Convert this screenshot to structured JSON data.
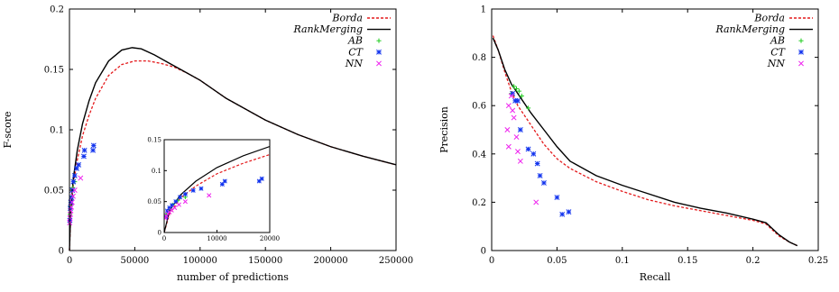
{
  "colors": {
    "borda": "#e41a1c",
    "rankmerging": "#000000",
    "ab": "#22cc22",
    "ct": "#1133ee",
    "nn": "#ee22ee"
  },
  "chart_data": [
    {
      "type": "line",
      "xlabel": "number of predictions",
      "ylabel": "F-score",
      "xlim": [
        0,
        250000
      ],
      "ylim": [
        0,
        0.2
      ],
      "xticks": [
        "0",
        "50000",
        "100000",
        "150000",
        "200000",
        "250000"
      ],
      "yticks": [
        "0",
        "0.05",
        "0.1",
        "0.15",
        "0.2"
      ],
      "grid": false,
      "legend": "top-right",
      "series": [
        {
          "name": "Borda",
          "style": "dashed",
          "points": [
            [
              0,
              0
            ],
            [
              1000,
              0.03
            ],
            [
              3000,
              0.055
            ],
            [
              6000,
              0.075
            ],
            [
              10000,
              0.095
            ],
            [
              15000,
              0.112
            ],
            [
              20000,
              0.126
            ],
            [
              30000,
              0.145
            ],
            [
              40000,
              0.154
            ],
            [
              50000,
              0.157
            ],
            [
              60000,
              0.157
            ],
            [
              70000,
              0.155
            ],
            [
              80000,
              0.152
            ],
            [
              90000,
              0.147
            ],
            [
              100000,
              0.141
            ],
            [
              120000,
              0.126
            ],
            [
              150000,
              0.108
            ],
            [
              175000,
              0.096
            ],
            [
              200000,
              0.086
            ],
            [
              225000,
              0.078
            ],
            [
              250000,
              0.071
            ]
          ]
        },
        {
          "name": "RankMerging",
          "style": "solid",
          "points": [
            [
              0,
              0
            ],
            [
              1000,
              0.035
            ],
            [
              3000,
              0.06
            ],
            [
              6000,
              0.083
            ],
            [
              10000,
              0.105
            ],
            [
              15000,
              0.124
            ],
            [
              20000,
              0.139
            ],
            [
              30000,
              0.157
            ],
            [
              40000,
              0.166
            ],
            [
              48000,
              0.168
            ],
            [
              55000,
              0.167
            ],
            [
              65000,
              0.162
            ],
            [
              75000,
              0.156
            ],
            [
              90000,
              0.147
            ],
            [
              100000,
              0.141
            ],
            [
              120000,
              0.126
            ],
            [
              150000,
              0.108
            ],
            [
              175000,
              0.096
            ],
            [
              200000,
              0.086
            ],
            [
              225000,
              0.078
            ],
            [
              250000,
              0.071
            ]
          ]
        },
        {
          "name": "AB",
          "style": "points",
          "points": [
            [
              400,
              0.03
            ],
            [
              900,
              0.037
            ],
            [
              1600,
              0.045
            ],
            [
              2600,
              0.052
            ],
            [
              4000,
              0.057
            ]
          ]
        },
        {
          "name": "CT",
          "style": "points",
          "points": [
            [
              300,
              0.025
            ],
            [
              600,
              0.035
            ],
            [
              1000,
              0.04
            ],
            [
              1500,
              0.044
            ],
            [
              2200,
              0.05
            ],
            [
              3000,
              0.057
            ],
            [
              4000,
              0.062
            ],
            [
              5500,
              0.068
            ],
            [
              7000,
              0.071
            ],
            [
              11000,
              0.078
            ],
            [
              11500,
              0.083
            ],
            [
              18000,
              0.083
            ],
            [
              18500,
              0.087
            ]
          ]
        },
        {
          "name": "NN",
          "style": "points",
          "points": [
            [
              200,
              0.023
            ],
            [
              400,
              0.027
            ],
            [
              700,
              0.03
            ],
            [
              1000,
              0.033
            ],
            [
              1400,
              0.036
            ],
            [
              2000,
              0.04
            ],
            [
              2800,
              0.045
            ],
            [
              4000,
              0.05
            ],
            [
              8500,
              0.06
            ]
          ]
        }
      ],
      "inset": {
        "xlim": [
          0,
          20000
        ],
        "ylim": [
          0,
          0.15
        ],
        "xticks": [
          "0",
          "10000",
          "20000"
        ],
        "yticks": [
          "0",
          "0.05",
          "0.1",
          "0.15"
        ]
      }
    },
    {
      "type": "line",
      "xlabel": "Recall",
      "ylabel": "Precision",
      "xlim": [
        0,
        0.25
      ],
      "ylim": [
        0,
        1
      ],
      "xticks": [
        "0",
        "0.05",
        "0.1",
        "0.15",
        "0.2",
        "0.25"
      ],
      "yticks": [
        "0",
        "0.2",
        "0.4",
        "0.6",
        "0.8",
        "1"
      ],
      "grid": false,
      "legend": "top-right",
      "series": [
        {
          "name": "Borda",
          "style": "dashed",
          "points": [
            [
              0.001,
              0.89
            ],
            [
              0.005,
              0.83
            ],
            [
              0.01,
              0.74
            ],
            [
              0.015,
              0.66
            ],
            [
              0.02,
              0.6
            ],
            [
              0.03,
              0.52
            ],
            [
              0.04,
              0.44
            ],
            [
              0.05,
              0.38
            ],
            [
              0.06,
              0.34
            ],
            [
              0.08,
              0.285
            ],
            [
              0.1,
              0.245
            ],
            [
              0.12,
              0.21
            ],
            [
              0.14,
              0.185
            ],
            [
              0.16,
              0.165
            ],
            [
              0.18,
              0.145
            ],
            [
              0.2,
              0.125
            ],
            [
              0.21,
              0.11
            ],
            [
              0.22,
              0.06
            ],
            [
              0.228,
              0.035
            ],
            [
              0.234,
              0.02
            ]
          ]
        },
        {
          "name": "RankMerging",
          "style": "solid",
          "points": [
            [
              0.001,
              0.88
            ],
            [
              0.005,
              0.83
            ],
            [
              0.01,
              0.75
            ],
            [
              0.015,
              0.69
            ],
            [
              0.02,
              0.65
            ],
            [
              0.03,
              0.57
            ],
            [
              0.04,
              0.5
            ],
            [
              0.05,
              0.43
            ],
            [
              0.06,
              0.37
            ],
            [
              0.08,
              0.31
            ],
            [
              0.1,
              0.27
            ],
            [
              0.12,
              0.235
            ],
            [
              0.14,
              0.2
            ],
            [
              0.16,
              0.175
            ],
            [
              0.18,
              0.155
            ],
            [
              0.2,
              0.13
            ],
            [
              0.21,
              0.115
            ],
            [
              0.22,
              0.065
            ],
            [
              0.228,
              0.035
            ],
            [
              0.234,
              0.02
            ]
          ]
        },
        {
          "name": "AB",
          "style": "points",
          "points": [
            [
              0.015,
              0.65
            ],
            [
              0.017,
              0.68
            ],
            [
              0.019,
              0.67
            ],
            [
              0.021,
              0.66
            ],
            [
              0.023,
              0.64
            ],
            [
              0.028,
              0.59
            ]
          ]
        },
        {
          "name": "CT",
          "style": "points",
          "points": [
            [
              0.016,
              0.65
            ],
            [
              0.018,
              0.62
            ],
            [
              0.02,
              0.62
            ],
            [
              0.022,
              0.5
            ],
            [
              0.028,
              0.42
            ],
            [
              0.032,
              0.4
            ],
            [
              0.035,
              0.36
            ],
            [
              0.037,
              0.31
            ],
            [
              0.04,
              0.28
            ],
            [
              0.05,
              0.22
            ],
            [
              0.054,
              0.15
            ],
            [
              0.059,
              0.16
            ]
          ]
        },
        {
          "name": "NN",
          "style": "points",
          "points": [
            [
              0.012,
              0.5
            ],
            [
              0.013,
              0.6
            ],
            [
              0.013,
              0.43
            ],
            [
              0.015,
              0.64
            ],
            [
              0.016,
              0.58
            ],
            [
              0.017,
              0.55
            ],
            [
              0.019,
              0.47
            ],
            [
              0.02,
              0.41
            ],
            [
              0.022,
              0.37
            ],
            [
              0.034,
              0.2
            ]
          ]
        }
      ]
    }
  ]
}
